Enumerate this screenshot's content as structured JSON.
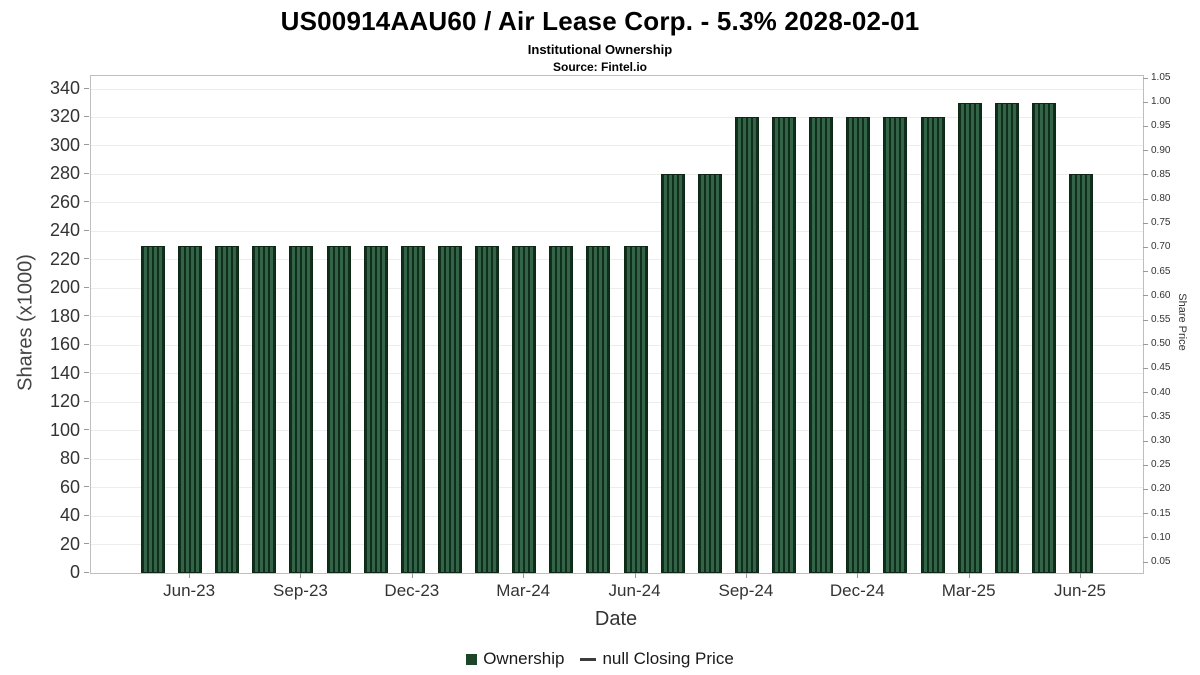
{
  "header": {
    "title": "US00914AAU60 / Air Lease Corp. - 5.3% 2028-02-01",
    "subtitle": "Institutional Ownership",
    "source": "Source: Fintel.io"
  },
  "chart_data": {
    "type": "bar",
    "title": "US00914AAU60 / Air Lease Corp. - 5.3% 2028-02-01",
    "subtitle": "Institutional Ownership",
    "source": "Source: Fintel.io",
    "xlabel": "Date",
    "ylabel_left": "Shares (x1000)",
    "ylabel_right": "Share Price",
    "categories": [
      "May-23",
      "Jun-23",
      "Jul-23",
      "Aug-23",
      "Sep-23",
      "Oct-23",
      "Nov-23",
      "Dec-23",
      "Jan-24",
      "Feb-24",
      "Mar-24",
      "Apr-24",
      "May-24",
      "Jun-24",
      "Jul-24",
      "Aug-24",
      "Sep-24",
      "Oct-24",
      "Nov-24",
      "Dec-24",
      "Jan-25",
      "Feb-25",
      "Mar-25",
      "Apr-25",
      "May-25",
      "Jun-25"
    ],
    "values": [
      230,
      230,
      230,
      230,
      230,
      230,
      230,
      230,
      230,
      230,
      230,
      230,
      230,
      230,
      280,
      280,
      320,
      320,
      320,
      320,
      320,
      320,
      330,
      330,
      330,
      280
    ],
    "x_ticks": [
      {
        "i": 1,
        "label": "Jun-23"
      },
      {
        "i": 4,
        "label": "Sep-23"
      },
      {
        "i": 7,
        "label": "Dec-23"
      },
      {
        "i": 10,
        "label": "Mar-24"
      },
      {
        "i": 13,
        "label": "Jun-24"
      },
      {
        "i": 16,
        "label": "Sep-24"
      },
      {
        "i": 19,
        "label": "Dec-24"
      },
      {
        "i": 22,
        "label": "Mar-25"
      },
      {
        "i": 25,
        "label": "Jun-25"
      }
    ],
    "y_left": {
      "min": 0,
      "max": 340,
      "step": 20
    },
    "y_right": {
      "min": 0.05,
      "max": 1.05,
      "step": 0.05
    },
    "grid": true,
    "legend_position": "bottom",
    "legend": [
      {
        "label": "Ownership",
        "swatch": "square",
        "color": "#1d4527"
      },
      {
        "label": "null Closing Price",
        "swatch": "line",
        "color": "#3c3c3c"
      }
    ],
    "bar_color": "#336448",
    "bar_stripe_color": "#0f2e1b"
  }
}
